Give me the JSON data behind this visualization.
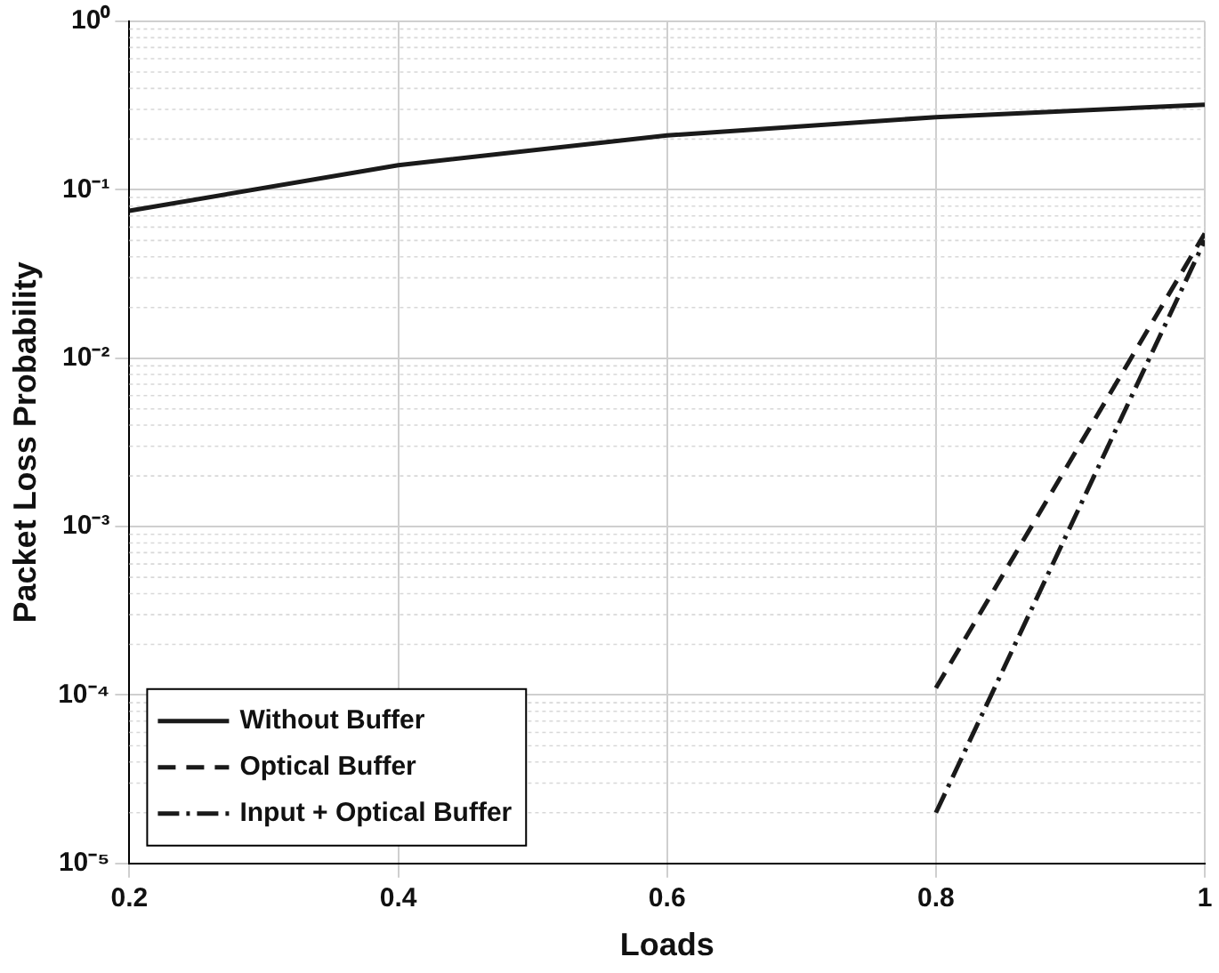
{
  "chart_data": {
    "type": "line",
    "xlabel": "Loads",
    "ylabel": "Packet Loss Probability",
    "log": "y",
    "grid": true,
    "legend": "bottom left",
    "marker": "none",
    "xlim": [
      0.2,
      1
    ],
    "xticks": [
      0.2,
      0.4,
      0.6,
      0.8,
      1
    ],
    "ylim": [
      1e-05,
      1
    ],
    "yticks": [
      {
        "value": 1e-05,
        "label": "10⁻⁵"
      },
      {
        "value": 0.0001,
        "label": "10⁻⁴"
      },
      {
        "value": 0.001,
        "label": "10⁻³"
      },
      {
        "value": 0.01,
        "label": "10⁻²"
      },
      {
        "value": 0.1,
        "label": "10⁻¹"
      },
      {
        "value": 1,
        "label": "10⁰"
      }
    ],
    "series": [
      {
        "name": "Without Buffer",
        "color": "#1a1a1a",
        "line_style": "solid",
        "x": [
          0.2,
          0.4,
          0.6,
          0.8,
          1
        ],
        "values": [
          0.075,
          0.14,
          0.21,
          0.27,
          0.32
        ]
      },
      {
        "name": "Optical Buffer",
        "color": "#1a1a1a",
        "line_style": "dashed",
        "x": [
          0.8,
          1
        ],
        "values": [
          0.00011,
          0.055
        ]
      },
      {
        "name": "Input + Optical Buffer",
        "color": "#1a1a1a",
        "line_style": "dotted",
        "x": [
          0.8,
          1
        ],
        "values": [
          2e-05,
          0.05
        ]
      }
    ]
  }
}
